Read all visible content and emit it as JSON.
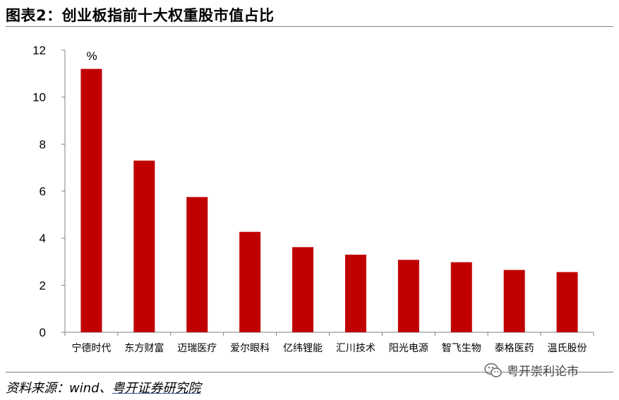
{
  "header": {
    "title": "图表2：创业板指前十大权重股市值占比"
  },
  "footer": {
    "source_prefix": "资料来源：wind、",
    "source_org": "粤开证券研究院",
    "watermark": "粤开崇利论市",
    "watermark_icon": "wechat-icon"
  },
  "colors": {
    "bar": "#c00000",
    "axis": "#808080"
  },
  "chart_data": {
    "type": "bar",
    "title": "",
    "unit_label": "%",
    "xlabel": "",
    "ylabel": "",
    "categories": [
      "宁德时代",
      "东方财富",
      "迈瑞医疗",
      "爱尔眼科",
      "亿纬锂能",
      "汇川技术",
      "阳光电源",
      "智飞生物",
      "泰格医药",
      "温氏股份"
    ],
    "values": [
      11.2,
      7.3,
      5.75,
      4.27,
      3.62,
      3.3,
      3.08,
      2.98,
      2.65,
      2.56
    ],
    "ylim": [
      0,
      12
    ],
    "yticks": [
      "0",
      "2",
      "4",
      "6",
      "8",
      "10",
      "12"
    ],
    "grid": false,
    "legend": "none"
  }
}
